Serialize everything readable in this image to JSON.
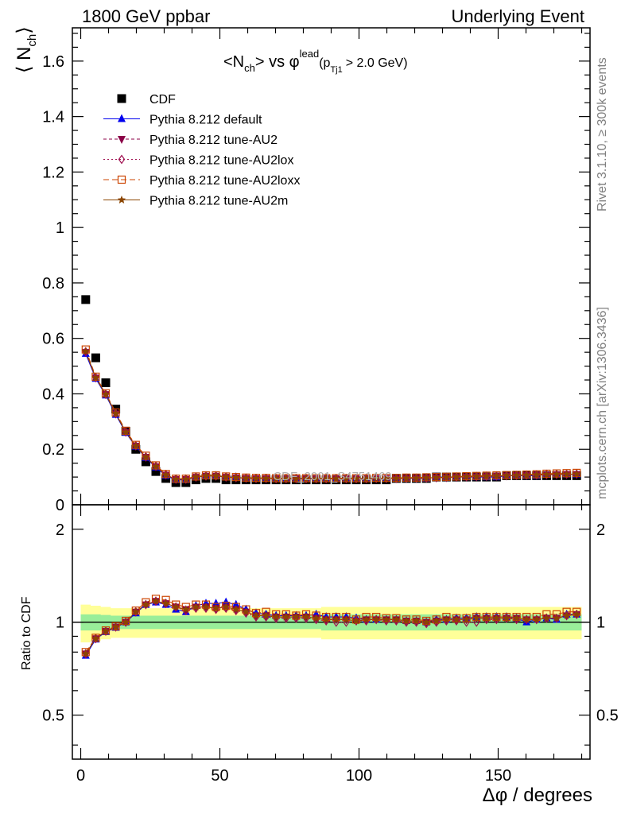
{
  "header": {
    "left": "1800 GeV ppbar",
    "right": "Underlying Event"
  },
  "side_labels": {
    "rivet": "Rivet 3.1.10, ≥ 300k events",
    "mcplots": "mcplots.cern.ch [arXiv:1306.3436]"
  },
  "plot_title": {
    "main": "<N",
    "sub_ch": "ch",
    "mid": "> vs φ",
    "sup_lead": "lead",
    "paren_open": "(p",
    "sub_tj1": "Tj1",
    "tail": "> 2.0 GeV)"
  },
  "watermark": "CDF_2001_S4751469",
  "colors": {
    "cdf": "#000000",
    "default": "#0000ee",
    "au2": "#8b0047",
    "au2lox": "#a01050",
    "au2loxx": "#cc4400",
    "au2m": "#8b4500",
    "band_inner": "#99ee99",
    "band_outer": "#ffff99"
  },
  "chart_data": [
    {
      "type": "scatter+line",
      "panel": "main",
      "ylabel_main": "⟨ N",
      "ylabel_sub": "ch",
      "ylabel_close": "⟩",
      "xlim": [
        -3,
        183
      ],
      "ylim": [
        0,
        1.72
      ],
      "yticks": [
        "0",
        "0.2",
        "0.4",
        "0.6",
        "0.8",
        "1",
        "1.2",
        "1.4",
        "1.6"
      ],
      "x": [
        1.8,
        5.4,
        9.0,
        12.6,
        16.2,
        19.8,
        23.4,
        27.0,
        30.6,
        34.2,
        37.8,
        41.4,
        45.0,
        48.6,
        52.2,
        55.8,
        59.4,
        63.0,
        66.6,
        70.2,
        73.8,
        77.4,
        81.0,
        84.6,
        88.2,
        91.8,
        95.4,
        99.0,
        102.6,
        106.2,
        109.8,
        113.4,
        117.0,
        120.6,
        124.2,
        127.8,
        131.4,
        135.0,
        138.6,
        142.2,
        145.8,
        149.4,
        153.0,
        156.6,
        160.2,
        163.8,
        167.4,
        171.0,
        174.6,
        178.2
      ],
      "series": [
        {
          "name": "CDF",
          "key": "cdf",
          "values": [
            0.74,
            0.53,
            0.44,
            0.345,
            0.265,
            0.2,
            0.155,
            0.12,
            0.095,
            0.08,
            0.08,
            0.09,
            0.095,
            0.095,
            0.09,
            0.09,
            0.09,
            0.09,
            0.09,
            0.09,
            0.09,
            0.09,
            0.09,
            0.09,
            0.09,
            0.09,
            0.09,
            0.09,
            0.09,
            0.09,
            0.09,
            0.095,
            0.095,
            0.095,
            0.095,
            0.1,
            0.1,
            0.1,
            0.1,
            0.1,
            0.1,
            0.1,
            0.105,
            0.105,
            0.105,
            0.105,
            0.105,
            0.105,
            0.105,
            0.105
          ]
        },
        {
          "name": "Pythia 8.212 default",
          "key": "default",
          "values": [
            0.545,
            0.455,
            0.395,
            0.325,
            0.26,
            0.21,
            0.17,
            0.135,
            0.105,
            0.09,
            0.09,
            0.1,
            0.105,
            0.105,
            0.1,
            0.1,
            0.095,
            0.095,
            0.095,
            0.095,
            0.095,
            0.095,
            0.095,
            0.095,
            0.095,
            0.095,
            0.095,
            0.095,
            0.095,
            0.095,
            0.095,
            0.095,
            0.095,
            0.095,
            0.095,
            0.1,
            0.1,
            0.1,
            0.1,
            0.1,
            0.1,
            0.1,
            0.105,
            0.105,
            0.105,
            0.105,
            0.11,
            0.11,
            0.11,
            0.11
          ]
        },
        {
          "name": "Pythia 8.212 tune-AU2",
          "key": "au2",
          "values": [
            0.55,
            0.458,
            0.398,
            0.328,
            0.262,
            0.212,
            0.172,
            0.138,
            0.108,
            0.092,
            0.092,
            0.1,
            0.104,
            0.104,
            0.1,
            0.098,
            0.096,
            0.095,
            0.095,
            0.094,
            0.094,
            0.094,
            0.094,
            0.094,
            0.094,
            0.094,
            0.094,
            0.094,
            0.094,
            0.095,
            0.095,
            0.095,
            0.096,
            0.096,
            0.097,
            0.098,
            0.099,
            0.1,
            0.101,
            0.102,
            0.103,
            0.104,
            0.105,
            0.106,
            0.107,
            0.108,
            0.108,
            0.109,
            0.11,
            0.11
          ]
        },
        {
          "name": "Pythia 8.212 tune-AU2lox",
          "key": "au2lox",
          "values": [
            0.552,
            0.459,
            0.399,
            0.33,
            0.263,
            0.213,
            0.173,
            0.139,
            0.109,
            0.093,
            0.093,
            0.1,
            0.104,
            0.104,
            0.1,
            0.098,
            0.096,
            0.095,
            0.095,
            0.094,
            0.094,
            0.094,
            0.094,
            0.094,
            0.094,
            0.094,
            0.094,
            0.094,
            0.094,
            0.095,
            0.095,
            0.095,
            0.096,
            0.096,
            0.097,
            0.098,
            0.099,
            0.1,
            0.101,
            0.102,
            0.103,
            0.104,
            0.105,
            0.106,
            0.107,
            0.108,
            0.109,
            0.11,
            0.11,
            0.111
          ]
        },
        {
          "name": "Pythia 8.212 tune-AU2loxx",
          "key": "au2loxx",
          "values": [
            0.56,
            0.462,
            0.402,
            0.333,
            0.267,
            0.216,
            0.177,
            0.142,
            0.111,
            0.094,
            0.094,
            0.102,
            0.106,
            0.106,
            0.102,
            0.1,
            0.098,
            0.097,
            0.097,
            0.096,
            0.096,
            0.096,
            0.096,
            0.096,
            0.096,
            0.096,
            0.096,
            0.096,
            0.096,
            0.097,
            0.097,
            0.097,
            0.098,
            0.098,
            0.099,
            0.1,
            0.101,
            0.102,
            0.103,
            0.104,
            0.105,
            0.106,
            0.107,
            0.108,
            0.109,
            0.11,
            0.112,
            0.113,
            0.114,
            0.115
          ]
        },
        {
          "name": "Pythia 8.212 tune-AU2m",
          "key": "au2m",
          "values": [
            0.553,
            0.458,
            0.398,
            0.329,
            0.262,
            0.212,
            0.172,
            0.138,
            0.108,
            0.092,
            0.092,
            0.1,
            0.104,
            0.104,
            0.1,
            0.098,
            0.096,
            0.095,
            0.095,
            0.094,
            0.094,
            0.094,
            0.094,
            0.094,
            0.094,
            0.094,
            0.094,
            0.094,
            0.094,
            0.095,
            0.095,
            0.095,
            0.096,
            0.096,
            0.097,
            0.098,
            0.099,
            0.1,
            0.101,
            0.102,
            0.103,
            0.104,
            0.105,
            0.106,
            0.107,
            0.108,
            0.109,
            0.11,
            0.11,
            0.111
          ]
        }
      ]
    },
    {
      "type": "ratio",
      "panel": "ratio",
      "ylabel": "Ratio to CDF",
      "xlabel": "Δφ / degrees",
      "ylim": [
        0.36,
        2.4
      ],
      "yscale": "log",
      "yticks": [
        "0.5",
        "1",
        "2"
      ],
      "xticks": [
        "0",
        "50",
        "100",
        "150"
      ],
      "band_inner_halfwidth": [
        0.06,
        0.06,
        0.055,
        0.05,
        0.05,
        0.05,
        0.05,
        0.05,
        0.05,
        0.05,
        0.05,
        0.05,
        0.05,
        0.05,
        0.05,
        0.05,
        0.05,
        0.05,
        0.05,
        0.05,
        0.05,
        0.05,
        0.05,
        0.05,
        0.06,
        0.06,
        0.06,
        0.06,
        0.06,
        0.06,
        0.06,
        0.06,
        0.06,
        0.06,
        0.06,
        0.06,
        0.06,
        0.06,
        0.06,
        0.06,
        0.06,
        0.06,
        0.06,
        0.06,
        0.06,
        0.06,
        0.06,
        0.06,
        0.06,
        0.06
      ],
      "band_outer_halfwidth": [
        0.14,
        0.13,
        0.12,
        0.11,
        0.11,
        0.11,
        0.11,
        0.11,
        0.11,
        0.11,
        0.11,
        0.11,
        0.11,
        0.11,
        0.11,
        0.11,
        0.11,
        0.11,
        0.11,
        0.11,
        0.11,
        0.11,
        0.11,
        0.11,
        0.12,
        0.12,
        0.12,
        0.12,
        0.12,
        0.12,
        0.12,
        0.12,
        0.12,
        0.12,
        0.12,
        0.12,
        0.12,
        0.12,
        0.12,
        0.12,
        0.12,
        0.12,
        0.12,
        0.12,
        0.12,
        0.12,
        0.12,
        0.12,
        0.12,
        0.12
      ],
      "series": [
        {
          "name": "Pythia 8.212 default",
          "key": "default",
          "values": [
            0.78,
            0.88,
            0.93,
            0.96,
            1.0,
            1.07,
            1.14,
            1.16,
            1.14,
            1.1,
            1.08,
            1.13,
            1.15,
            1.15,
            1.16,
            1.14,
            1.1,
            1.07,
            1.06,
            1.05,
            1.05,
            1.05,
            1.05,
            1.06,
            1.04,
            1.04,
            1.04,
            1.03,
            1.02,
            1.02,
            1.02,
            1.02,
            1.01,
            1.01,
            1.0,
            1.02,
            1.02,
            1.03,
            1.03,
            1.04,
            1.04,
            1.04,
            1.04,
            1.03,
            1.0,
            1.02,
            1.03,
            1.02,
            1.06,
            1.06
          ]
        },
        {
          "name": "Pythia 8.212 tune-AU2",
          "key": "au2",
          "values": [
            0.79,
            0.885,
            0.935,
            0.965,
            1.0,
            1.08,
            1.14,
            1.17,
            1.15,
            1.12,
            1.1,
            1.12,
            1.12,
            1.11,
            1.12,
            1.1,
            1.08,
            1.05,
            1.05,
            1.04,
            1.04,
            1.04,
            1.04,
            1.03,
            1.02,
            1.02,
            1.02,
            1.01,
            1.02,
            1.02,
            1.02,
            1.02,
            1.01,
            1.01,
            1.0,
            1.01,
            1.02,
            1.02,
            1.02,
            1.03,
            1.03,
            1.03,
            1.03,
            1.03,
            1.02,
            1.02,
            1.03,
            1.03,
            1.05,
            1.06
          ]
        },
        {
          "name": "Pythia 8.212 tune-AU2lox",
          "key": "au2lox",
          "values": [
            0.79,
            0.885,
            0.935,
            0.965,
            1.0,
            1.08,
            1.14,
            1.17,
            1.15,
            1.12,
            1.09,
            1.11,
            1.11,
            1.1,
            1.11,
            1.09,
            1.07,
            1.04,
            1.04,
            1.03,
            1.03,
            1.03,
            1.03,
            1.02,
            1.01,
            1.0,
            1.0,
            1.01,
            1.01,
            1.02,
            1.01,
            1.01,
            1.0,
            1.0,
            0.99,
            1.0,
            1.01,
            1.01,
            1.0,
            1.0,
            1.02,
            1.02,
            1.03,
            1.02,
            1.02,
            1.02,
            1.03,
            1.03,
            1.05,
            1.06
          ]
        },
        {
          "name": "Pythia 8.212 tune-AU2loxx",
          "key": "au2loxx",
          "values": [
            0.8,
            0.89,
            0.94,
            0.97,
            1.01,
            1.09,
            1.16,
            1.19,
            1.18,
            1.14,
            1.12,
            1.14,
            1.14,
            1.12,
            1.13,
            1.12,
            1.1,
            1.07,
            1.08,
            1.06,
            1.06,
            1.05,
            1.06,
            1.05,
            1.04,
            1.04,
            1.04,
            1.02,
            1.04,
            1.04,
            1.03,
            1.03,
            1.02,
            1.02,
            1.01,
            1.02,
            1.04,
            1.03,
            1.03,
            1.04,
            1.04,
            1.04,
            1.04,
            1.04,
            1.04,
            1.04,
            1.06,
            1.06,
            1.08,
            1.08
          ]
        },
        {
          "name": "Pythia 8.212 tune-AU2m",
          "key": "au2m",
          "values": [
            0.79,
            0.885,
            0.935,
            0.965,
            1.0,
            1.08,
            1.14,
            1.17,
            1.15,
            1.12,
            1.1,
            1.12,
            1.12,
            1.11,
            1.12,
            1.1,
            1.08,
            1.05,
            1.05,
            1.04,
            1.04,
            1.04,
            1.04,
            1.03,
            1.02,
            1.02,
            1.02,
            1.01,
            1.02,
            1.02,
            1.02,
            1.02,
            1.01,
            1.01,
            1.0,
            1.01,
            1.02,
            1.02,
            1.02,
            1.03,
            1.03,
            1.03,
            1.03,
            1.03,
            1.02,
            1.02,
            1.03,
            1.03,
            1.05,
            1.06
          ]
        }
      ]
    }
  ]
}
